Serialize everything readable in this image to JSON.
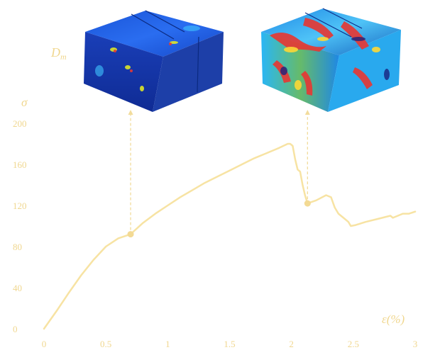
{
  "chart_data": {
    "type": "line",
    "title": "",
    "xlabel": "ε(%)",
    "ylabel": "σ",
    "xlim": [
      0,
      3
    ],
    "ylim": [
      0,
      200
    ],
    "x_ticks": [
      "0",
      "0.5",
      "1",
      "1.5",
      "2",
      "2.5",
      "3"
    ],
    "y_ticks": [
      "0",
      "40",
      "80",
      "120",
      "160",
      "200"
    ],
    "grid": false,
    "series": [
      {
        "x": [
          0,
          0.1,
          0.2,
          0.3,
          0.4,
          0.5,
          0.6,
          0.7,
          0.8,
          0.9,
          1.0,
          1.1,
          1.2,
          1.3,
          1.4,
          1.5,
          1.6,
          1.7,
          1.8,
          1.9,
          1.97,
          1.99,
          2.01,
          2.03,
          2.05,
          2.07,
          2.09,
          2.11,
          2.13,
          2.2,
          2.28,
          2.32,
          2.35,
          2.38,
          2.42,
          2.46,
          2.48,
          2.52,
          2.6,
          2.7,
          2.8,
          2.82,
          2.86,
          2.9,
          2.95,
          3.0
        ],
        "y": [
          0,
          17,
          35,
          52,
          67,
          80,
          88,
          92,
          103,
          112,
          120,
          128,
          135,
          142,
          148,
          154,
          160,
          166,
          171,
          176,
          180,
          180,
          178,
          165,
          155,
          153,
          140,
          130,
          122,
          125,
          130,
          128,
          118,
          112,
          108,
          104,
          100,
          101,
          104,
          107,
          110,
          108,
          110,
          112,
          112,
          114
        ]
      }
    ],
    "annotations": [
      {
        "label": "",
        "x": 0.7,
        "y": 92
      },
      {
        "label": "",
        "x": 2.13,
        "y": 122
      }
    ],
    "corner_label": "D",
    "corner_label_sub": "m"
  },
  "colors": {
    "line": "#f7e3a3",
    "marker": "#f3da94",
    "text": "#f0d78f",
    "arrow": "#f2dc9c"
  },
  "insets": [
    {
      "name": "damage-cube-low-strain",
      "palette": "mostly-blue"
    },
    {
      "name": "damage-cube-peak-strain",
      "palette": "multicolor"
    }
  ]
}
